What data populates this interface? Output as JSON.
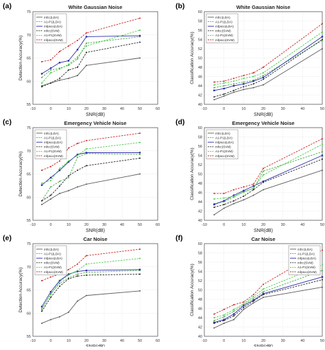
{
  "chart_data": [
    {
      "panel_label": "(a)",
      "type": "line",
      "title": "White Gaussian Noise",
      "xlabel": "SNR(dB)",
      "ylabel": "Detection Accuracy(%)",
      "xlim": [
        -10,
        60
      ],
      "ylim": [
        55,
        75
      ],
      "xticks": [
        "-10",
        "0",
        "10",
        "20",
        "30",
        "40",
        "50",
        "60"
      ],
      "yticks": [
        "55",
        "60",
        "65",
        "70",
        "75"
      ],
      "grid": true,
      "legend_position": "top-left",
      "x": [
        -5,
        0,
        5,
        10,
        15,
        20,
        50
      ],
      "series": [
        {
          "name": "mfcc(LDA)",
          "color": "#5b5b5b",
          "dash": "solid",
          "marker": "",
          "values": [
            59.0,
            59.6,
            60.2,
            60.6,
            61.2,
            63.4,
            65.0
          ]
        },
        {
          "name": "A1-P1(LDA)",
          "color": "#4aa84a",
          "dash": "dash",
          "marker": "",
          "values": [
            60.8,
            62.4,
            62.8,
            63.4,
            64.8,
            68.2,
            69.6
          ]
        },
        {
          "name": "mfpsco(LDA)",
          "color": "#2a2aaa",
          "dash": "solid",
          "marker": "square",
          "values": [
            61.6,
            62.8,
            64.0,
            64.4,
            66.8,
            69.6,
            69.8
          ]
        },
        {
          "name": "mfcc(SVM)",
          "color": "#222222",
          "dash": "dash",
          "marker": "",
          "values": [
            58.8,
            59.6,
            60.6,
            62.4,
            63.0,
            66.2,
            68.4
          ]
        },
        {
          "name": "A1-P1(SVM)",
          "color": "#44cc44",
          "dash": "dash",
          "marker": "",
          "values": [
            59.6,
            61.8,
            62.6,
            63.6,
            65.2,
            67.6,
            71.0
          ]
        },
        {
          "name": "mfpsco(SVM)",
          "color": "#cc2222",
          "dash": "dash",
          "marker": "",
          "values": [
            64.2,
            64.6,
            66.4,
            67.6,
            68.8,
            70.4,
            73.6
          ]
        }
      ]
    },
    {
      "panel_label": "(b)",
      "type": "line",
      "title": "White Gaussian Noise",
      "xlabel": "SNR(dB)",
      "ylabel": "Classification Accuracy(%)",
      "xlim": [
        -10,
        50
      ],
      "ylim": [
        40,
        60
      ],
      "xticks": [
        "-10",
        "0",
        "10",
        "20",
        "30",
        "40",
        "50"
      ],
      "yticks": [
        "40",
        "42",
        "44",
        "46",
        "48",
        "50",
        "52",
        "54",
        "56",
        "58",
        "60"
      ],
      "grid": true,
      "legend_position": "top-left",
      "x": [
        -5,
        0,
        5,
        10,
        15,
        20,
        50
      ],
      "series": [
        {
          "name": "mfcc(LDA)",
          "color": "#5b5b5b",
          "dash": "solid",
          "marker": "",
          "values": [
            41.0,
            41.8,
            42.6,
            43.2,
            43.6,
            44.2,
            52.0
          ]
        },
        {
          "name": "A1-P1(LDA)",
          "color": "#4aa84a",
          "dash": "dash",
          "marker": "",
          "values": [
            43.6,
            44.0,
            44.4,
            44.8,
            45.2,
            46.2,
            53.8
          ]
        },
        {
          "name": "mfpsco(LDA)",
          "color": "#2a2aaa",
          "dash": "solid",
          "marker": "square",
          "values": [
            43.0,
            43.4,
            44.0,
            44.4,
            45.0,
            45.8,
            54.6
          ]
        },
        {
          "name": "mfcc(SVM)",
          "color": "#222222",
          "dash": "dash",
          "marker": "",
          "values": [
            41.6,
            42.2,
            43.0,
            43.8,
            44.4,
            45.4,
            54.0
          ]
        },
        {
          "name": "A1-P1(SVM)",
          "color": "#44cc44",
          "dash": "dash",
          "marker": "",
          "values": [
            44.2,
            44.6,
            45.0,
            45.6,
            46.0,
            46.8,
            55.6
          ]
        },
        {
          "name": "mfpsco(SVM)",
          "color": "#cc2222",
          "dash": "dash",
          "marker": "",
          "values": [
            44.8,
            45.0,
            45.6,
            46.2,
            46.8,
            48.0,
            57.4
          ]
        }
      ]
    },
    {
      "panel_label": "(c)",
      "type": "line",
      "title": "Emergency Vehicle Noise",
      "xlabel": "SNR(dB)",
      "ylabel": "Detection Accuracy(%)",
      "xlim": [
        -10,
        60
      ],
      "ylim": [
        55,
        75
      ],
      "xticks": [
        "-10",
        "0",
        "10",
        "20",
        "30",
        "40",
        "50",
        "60"
      ],
      "yticks": [
        "55",
        "60",
        "65",
        "70",
        "75"
      ],
      "grid": true,
      "legend_position": "top-left",
      "x": [
        -5,
        0,
        5,
        10,
        15,
        20,
        50
      ],
      "series": [
        {
          "name": "mfcc(LDA)",
          "color": "#5b5b5b",
          "dash": "solid",
          "marker": "",
          "values": [
            58.4,
            59.6,
            60.8,
            61.4,
            62.2,
            62.8,
            65.0
          ]
        },
        {
          "name": "A1-P1(LDA)",
          "color": "#4aa84a",
          "dash": "dash",
          "marker": "",
          "values": [
            59.2,
            62.2,
            63.4,
            64.2,
            68.6,
            69.4,
            69.2
          ]
        },
        {
          "name": "mfpsco(LDA)",
          "color": "#2a2aaa",
          "dash": "solid",
          "marker": "square",
          "values": [
            62.6,
            64.2,
            65.8,
            67.6,
            69.2,
            69.6,
            69.6
          ]
        },
        {
          "name": "mfcc(SVM)",
          "color": "#222222",
          "dash": "dash",
          "marker": "",
          "values": [
            59.2,
            60.4,
            62.4,
            64.6,
            65.8,
            66.8,
            68.4
          ]
        },
        {
          "name": "A1-P1(SVM)",
          "color": "#44cc44",
          "dash": "dash",
          "marker": "",
          "values": [
            63.0,
            63.6,
            66.2,
            67.8,
            69.0,
            70.4,
            71.8
          ]
        },
        {
          "name": "mfpsco(SVM)",
          "color": "#cc2222",
          "dash": "dash",
          "marker": "",
          "values": [
            65.8,
            66.6,
            67.8,
            70.6,
            71.6,
            72.2,
            73.8
          ]
        }
      ]
    },
    {
      "panel_label": "(d)",
      "type": "line",
      "title": "Emergency Vehicle Noise",
      "xlabel": "SNR(dB)",
      "ylabel": "Classification Accuracy(%)",
      "xlim": [
        -10,
        50
      ],
      "ylim": [
        40,
        60
      ],
      "xticks": [
        "-10",
        "0",
        "10",
        "20",
        "30",
        "40",
        "50"
      ],
      "yticks": [
        "40",
        "42",
        "44",
        "46",
        "48",
        "50",
        "52",
        "54",
        "56",
        "58",
        "60"
      ],
      "grid": true,
      "legend_position": "top-left",
      "x": [
        -5,
        0,
        5,
        10,
        15,
        20,
        50
      ],
      "series": [
        {
          "name": "mfcc(LDA)",
          "color": "#5b5b5b",
          "dash": "solid",
          "marker": "",
          "values": [
            41.2,
            42.6,
            43.6,
            44.4,
            45.4,
            46.6,
            50.8
          ]
        },
        {
          "name": "A1-P1(LDA)",
          "color": "#4aa84a",
          "dash": "dash",
          "marker": "",
          "values": [
            43.6,
            44.0,
            45.0,
            46.2,
            46.8,
            50.6,
            54.8
          ]
        },
        {
          "name": "mfpsco(LDA)",
          "color": "#2a2aaa",
          "dash": "solid",
          "marker": "square",
          "values": [
            43.4,
            44.2,
            45.4,
            46.4,
            47.4,
            48.4,
            54.0
          ]
        },
        {
          "name": "mfcc(SVM)",
          "color": "#222222",
          "dash": "dash",
          "marker": "",
          "values": [
            42.8,
            43.4,
            44.2,
            45.2,
            46.6,
            48.2,
            53.2
          ]
        },
        {
          "name": "A1-P1(SVM)",
          "color": "#44cc44",
          "dash": "dash",
          "marker": "",
          "values": [
            44.6,
            44.8,
            45.2,
            46.0,
            47.0,
            49.8,
            56.4
          ]
        },
        {
          "name": "mfpsco(SVM)",
          "color": "#cc2222",
          "dash": "dash",
          "marker": "",
          "values": [
            45.8,
            45.8,
            46.6,
            47.2,
            47.8,
            51.2,
            57.6
          ]
        }
      ]
    },
    {
      "panel_label": "(e)",
      "type": "line",
      "title": "Car Noise",
      "xlabel": "SNR(dB)",
      "ylabel": "Detection Accuracy(%)",
      "xlim": [
        -10,
        60
      ],
      "ylim": [
        55,
        75
      ],
      "xticks": [
        "-10",
        "0",
        "10",
        "20",
        "30",
        "40",
        "50",
        "60"
      ],
      "yticks": [
        "55",
        "60",
        "65",
        "70",
        "75"
      ],
      "grid": true,
      "legend_position": "top-left",
      "x": [
        -5,
        0,
        5,
        10,
        15,
        20,
        50
      ],
      "series": [
        {
          "name": "mfcc(LDA)",
          "color": "#5b5b5b",
          "dash": "solid",
          "marker": "",
          "values": [
            57.8,
            58.6,
            59.2,
            60.2,
            62.6,
            63.8,
            64.8
          ]
        },
        {
          "name": "A1-P1(LDA)",
          "color": "#4aa84a",
          "dash": "dash",
          "marker": "",
          "values": [
            60.8,
            64.2,
            66.4,
            67.6,
            68.4,
            68.8,
            69.2
          ]
        },
        {
          "name": "mfpsco(LDA)",
          "color": "#2a2aaa",
          "dash": "solid",
          "marker": "square",
          "values": [
            61.4,
            64.6,
            67.0,
            68.4,
            69.0,
            69.2,
            69.4
          ]
        },
        {
          "name": "mfcc(SVM)",
          "color": "#222222",
          "dash": "dash",
          "marker": "",
          "values": [
            60.4,
            63.4,
            65.8,
            67.4,
            68.0,
            68.2,
            68.4
          ]
        },
        {
          "name": "A1-P1(SVM)",
          "color": "#44cc44",
          "dash": "dash",
          "marker": "",
          "values": [
            61.0,
            64.0,
            66.8,
            68.2,
            69.2,
            70.6,
            71.8
          ]
        },
        {
          "name": "mfpsco(SVM)",
          "color": "#cc2222",
          "dash": "dash",
          "marker": "",
          "values": [
            67.0,
            67.8,
            68.4,
            69.4,
            70.6,
            72.4,
            73.8
          ]
        }
      ]
    },
    {
      "panel_label": "(f)",
      "type": "line",
      "title": "Car Noise",
      "xlabel": "SNR(dB)",
      "ylabel": "Classification Accuracy(%)",
      "xlim": [
        -10,
        50
      ],
      "ylim": [
        40,
        60
      ],
      "xticks": [
        "-10",
        "0",
        "10",
        "20",
        "30",
        "40",
        "50"
      ],
      "yticks": [
        "40",
        "42",
        "44",
        "46",
        "48",
        "50",
        "52",
        "54",
        "56",
        "58",
        "60"
      ],
      "grid": true,
      "legend_position": "top-right",
      "x": [
        -5,
        0,
        5,
        10,
        15,
        20,
        50
      ],
      "series": [
        {
          "name": "mfcc(LDA)",
          "color": "#5b5b5b",
          "dash": "solid",
          "marker": "",
          "values": [
            41.8,
            42.8,
            43.6,
            45.8,
            47.2,
            48.4,
            50.6
          ]
        },
        {
          "name": "A1-P1(LDA)",
          "color": "#4aa84a",
          "dash": "dash",
          "marker": "",
          "values": [
            43.4,
            44.2,
            45.4,
            46.8,
            48.2,
            49.6,
            54.2
          ]
        },
        {
          "name": "mfpsco(LDA)",
          "color": "#2a2aaa",
          "dash": "solid",
          "marker": "square",
          "values": [
            43.0,
            43.6,
            44.8,
            46.6,
            47.8,
            49.2,
            52.8
          ]
        },
        {
          "name": "mfcc(SVM)",
          "color": "#222222",
          "dash": "dash",
          "marker": "",
          "values": [
            42.8,
            43.4,
            44.4,
            46.2,
            47.6,
            49.0,
            52.2
          ]
        },
        {
          "name": "A1-P1(SVM)",
          "color": "#44cc44",
          "dash": "dash",
          "marker": "",
          "values": [
            44.0,
            44.6,
            45.8,
            47.0,
            48.6,
            50.2,
            55.4
          ]
        },
        {
          "name": "mfpsco(SVM)",
          "color": "#cc2222",
          "dash": "dash",
          "marker": "",
          "values": [
            44.8,
            45.8,
            46.8,
            47.4,
            49.0,
            51.2,
            58.6
          ]
        }
      ]
    }
  ]
}
